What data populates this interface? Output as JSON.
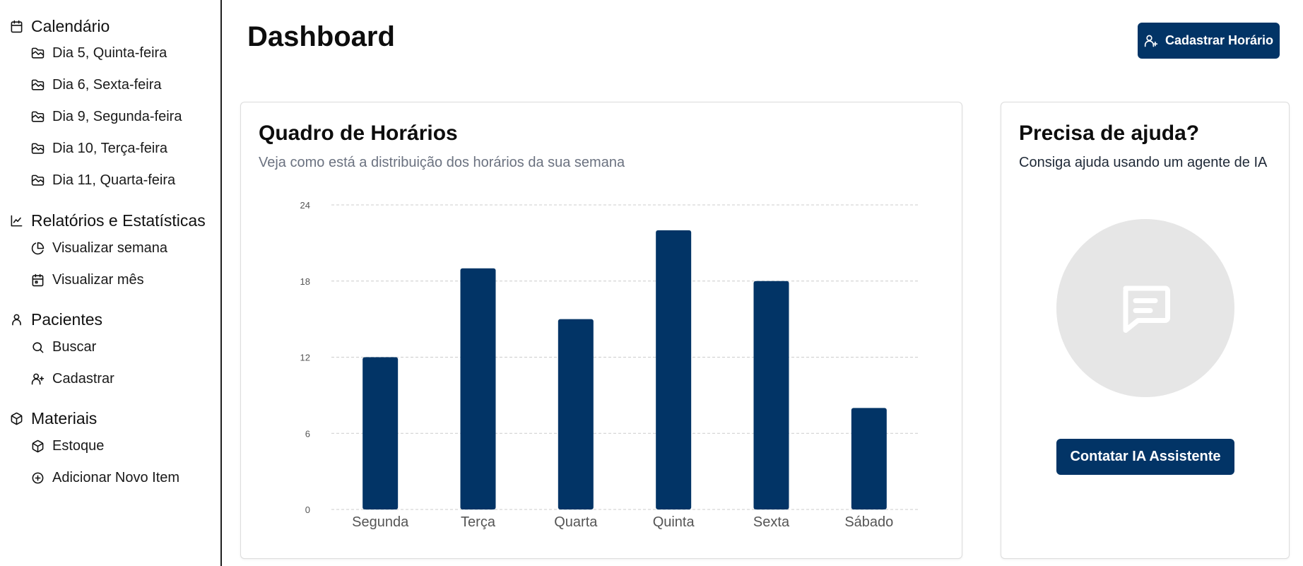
{
  "sidebar": {
    "sections": [
      {
        "title": "Calendário",
        "icon": "calendar-icon",
        "items": [
          {
            "label": "Dia 5, Quinta-feira",
            "icon": "folder-icon"
          },
          {
            "label": "Dia 6, Sexta-feira",
            "icon": "folder-icon"
          },
          {
            "label": "Dia 9, Segunda-feira",
            "icon": "folder-icon"
          },
          {
            "label": "Dia 10, Terça-feira",
            "icon": "folder-icon"
          },
          {
            "label": "Dia 11, Quarta-feira",
            "icon": "folder-icon"
          }
        ]
      },
      {
        "title": "Relatórios e Estatísticas",
        "icon": "line-chart-icon",
        "items": [
          {
            "label": "Visualizar semana",
            "icon": "pie-chart-icon"
          },
          {
            "label": "Visualizar mês",
            "icon": "calendar-icon"
          }
        ]
      },
      {
        "title": "Pacientes",
        "icon": "user-icon",
        "items": [
          {
            "label": "Buscar",
            "icon": "search-icon"
          },
          {
            "label": "Cadastrar",
            "icon": "user-plus-icon"
          }
        ]
      },
      {
        "title": "Materiais",
        "icon": "package-icon",
        "items": [
          {
            "label": "Estoque",
            "icon": "package-icon"
          },
          {
            "label": "Adicionar Novo Item",
            "icon": "plus-circle-icon"
          }
        ]
      }
    ]
  },
  "header": {
    "title": "Dashboard",
    "action_label": "Cadastrar Horário",
    "action_icon": "user-plus-icon"
  },
  "schedule_card": {
    "title": "Quadro de Horários",
    "subtitle": "Veja como está a distribuição dos horários da sua semana"
  },
  "help_card": {
    "title": "Precisa de ajuda?",
    "subtitle": "Consiga ajuda usando um agente de IA",
    "icon": "chat-message-icon",
    "button_label": "Contatar IA Assistente"
  },
  "colors": {
    "primary": "#023466",
    "sidebar_border": "#1f1f1f",
    "muted_text": "#6b7280",
    "grid": "#cccccc",
    "circle": "#e6e6e6"
  },
  "chart_data": {
    "type": "bar",
    "categories": [
      "Segunda",
      "Terça",
      "Quarta",
      "Quinta",
      "Sexta",
      "Sábado"
    ],
    "values": [
      12,
      19,
      15,
      22,
      18,
      8
    ],
    "yticks": [
      0,
      6,
      12,
      18,
      24
    ],
    "ylim": [
      0,
      24
    ],
    "grid": true,
    "color": "#023466"
  }
}
